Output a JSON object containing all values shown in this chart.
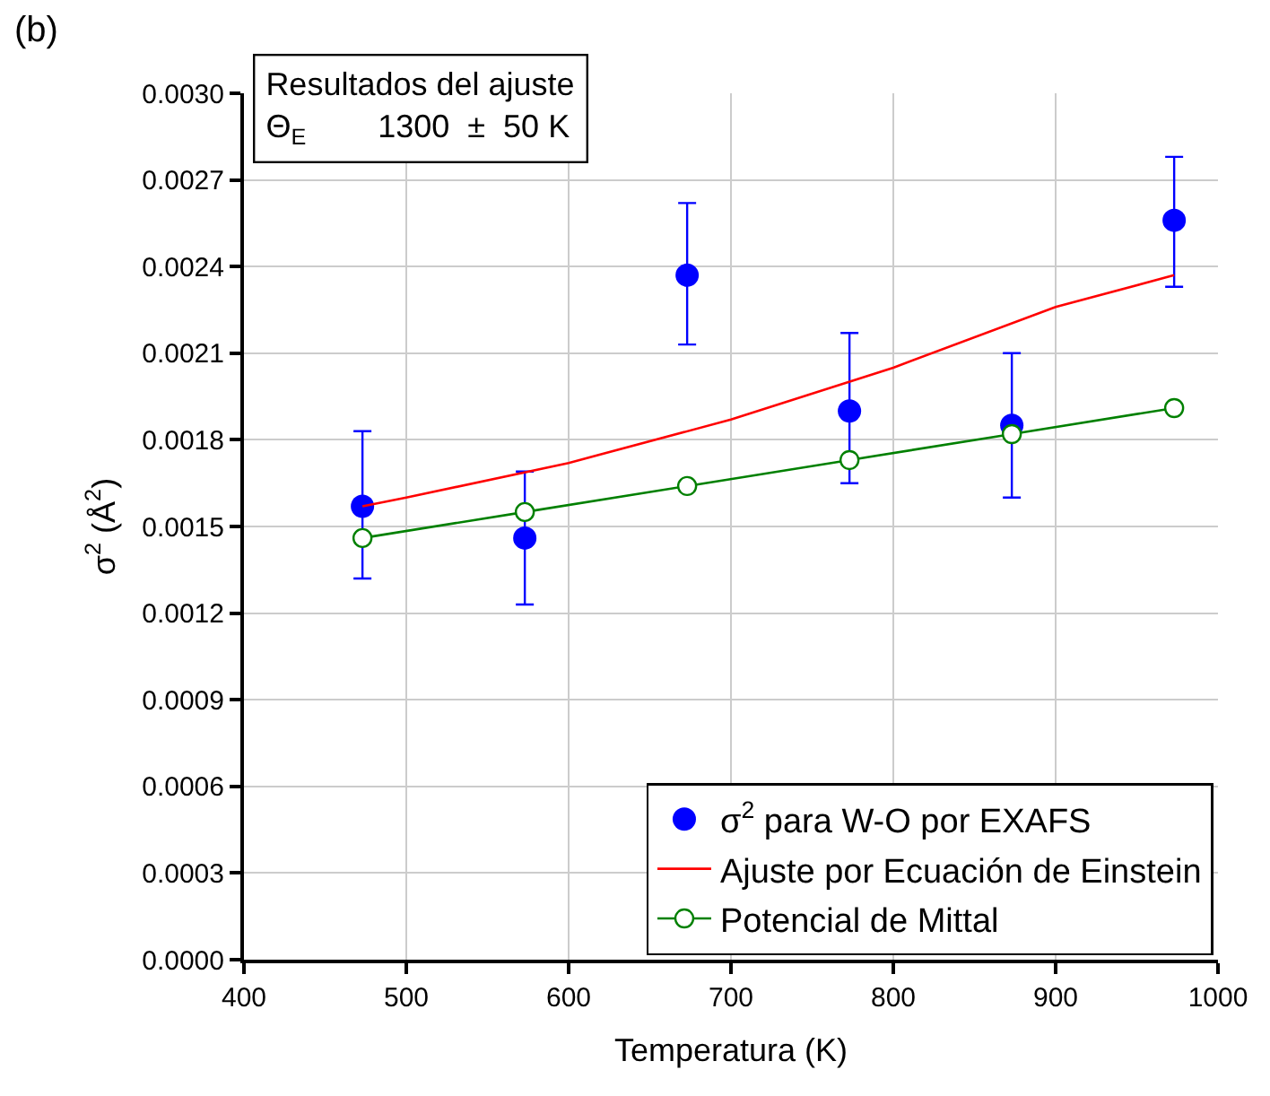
{
  "chart_data": {
    "type": "scatter",
    "xlabel": "Temperatura (K)",
    "ylabel": "σ$^{2}$ (Å$^{2}$)",
    "annotations": [
      "(b)",
      "Resultados del ajuste",
      "Θ$_{E}$        1300  ±  50 K"
    ],
    "xlim": [
      400,
      1000
    ],
    "xticks": [
      400,
      500,
      600,
      700,
      800,
      900,
      1000
    ],
    "ylim": [
      0,
      0.003
    ],
    "yticks": [
      {
        "value": 0,
        "label": "0.0000"
      },
      {
        "value": 0.0003,
        "label": "0.0003"
      },
      {
        "value": 0.0006,
        "label": "0.0006"
      },
      {
        "value": 0.0009,
        "label": "0.0009"
      },
      {
        "value": 0.0012,
        "label": "0.0012"
      },
      {
        "value": 0.0015,
        "label": "0.0015"
      },
      {
        "value": 0.0018,
        "label": "0.0018"
      },
      {
        "value": 0.0021,
        "label": "0.0021"
      },
      {
        "value": 0.0024,
        "label": "0.0024"
      },
      {
        "value": 0.0027,
        "label": "0.0027"
      },
      {
        "value": 0.003,
        "label": "0.0030"
      }
    ],
    "grid": true,
    "legend": "bottom right",
    "series": [
      {
        "name": "σ$^{2}$ para W-O por EXAFS",
        "marker": "circle",
        "color": "#0000ff",
        "x": [
          473,
          573,
          673,
          773,
          873,
          973
        ],
        "values": [
          0.00157,
          0.00146,
          0.00237,
          0.0019,
          0.00185,
          0.00256
        ],
        "errors": [
          [
            0.00132,
            0.00183
          ],
          [
            0.00123,
            0.00169
          ],
          [
            0.00213,
            0.00262
          ],
          [
            0.00165,
            0.00217
          ],
          [
            0.0016,
            0.0021
          ],
          [
            0.00233,
            0.00278
          ]
        ]
      },
      {
        "name": "Ajuste por Ecuación de Einstein",
        "type": "line",
        "marker": "none",
        "color": "#ff0000",
        "x": [
          473,
          500,
          600,
          700,
          800,
          900,
          973
        ],
        "values": [
          0.00157,
          0.0016,
          0.00172,
          0.00187,
          0.00205,
          0.00226,
          0.00237
        ]
      },
      {
        "name": "Potencial de Mittal",
        "type": "line",
        "marker": "circle",
        "color": "#008000",
        "x": [
          473,
          573,
          673,
          773,
          873,
          973
        ],
        "values": [
          0.00146,
          0.00155,
          0.00164,
          0.00173,
          0.00182,
          0.00191
        ]
      }
    ]
  }
}
